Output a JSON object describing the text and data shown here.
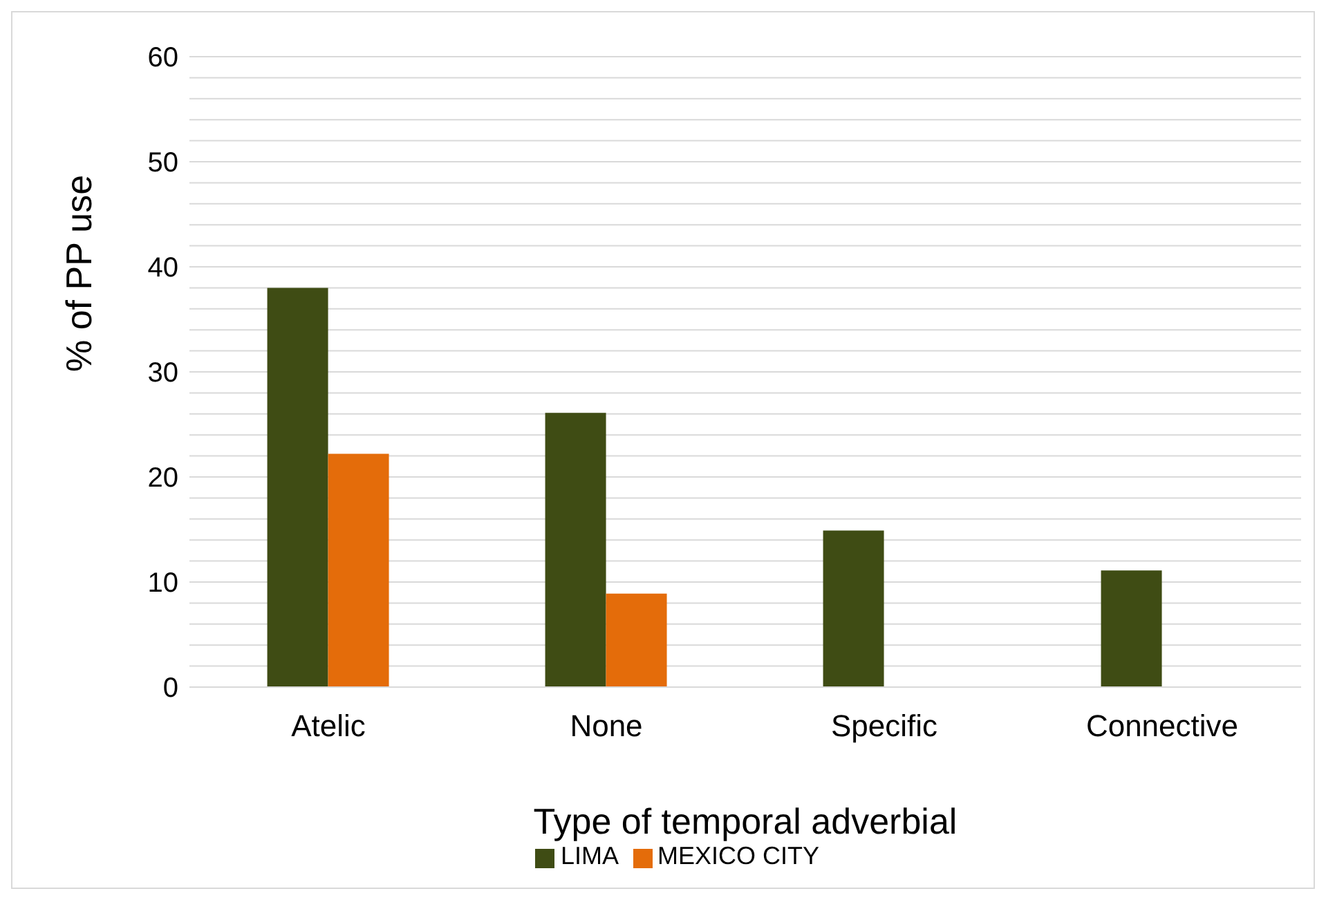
{
  "chart_data": {
    "type": "bar",
    "xlabel": "Type of temporal adverbial",
    "ylabel": "% of PP use",
    "categories": [
      "Atelic",
      "None",
      "Specific",
      "Connective"
    ],
    "series": [
      {
        "name": "LIMA",
        "color": "#3f4c14",
        "values": [
          38,
          26.1,
          14.9,
          11.1
        ]
      },
      {
        "name": "MEXICO CITY",
        "color": "#e46c0a",
        "values": [
          22.2,
          8.9,
          0,
          0
        ]
      }
    ],
    "ylim": [
      0,
      60
    ],
    "yticks": [
      0,
      {
        "value": 2,
        "label": null
      },
      {
        "value": 4,
        "label": null
      },
      {
        "value": 6,
        "label": null
      },
      {
        "value": 8,
        "label": null
      },
      10,
      {
        "value": 12,
        "label": null
      },
      {
        "value": 14,
        "label": null
      },
      {
        "value": 16,
        "label": null
      },
      {
        "value": 18,
        "label": null
      },
      20,
      {
        "value": 22,
        "label": null
      },
      {
        "value": 24,
        "label": null
      },
      {
        "value": 26,
        "label": null
      },
      {
        "value": 28,
        "label": null
      },
      30,
      {
        "value": 32,
        "label": null
      },
      {
        "value": 34,
        "label": null
      },
      {
        "value": 36,
        "label": null
      },
      {
        "value": 38,
        "label": null
      },
      40,
      {
        "value": 42,
        "label": null
      },
      {
        "value": 44,
        "label": null
      },
      {
        "value": 46,
        "label": null
      },
      {
        "value": 48,
        "label": null
      },
      50,
      {
        "value": 52,
        "label": null
      },
      {
        "value": 54,
        "label": null
      },
      {
        "value": 56,
        "label": null
      },
      {
        "value": 58,
        "label": null
      },
      60
    ],
    "grid": "y",
    "legend": "bottom"
  }
}
